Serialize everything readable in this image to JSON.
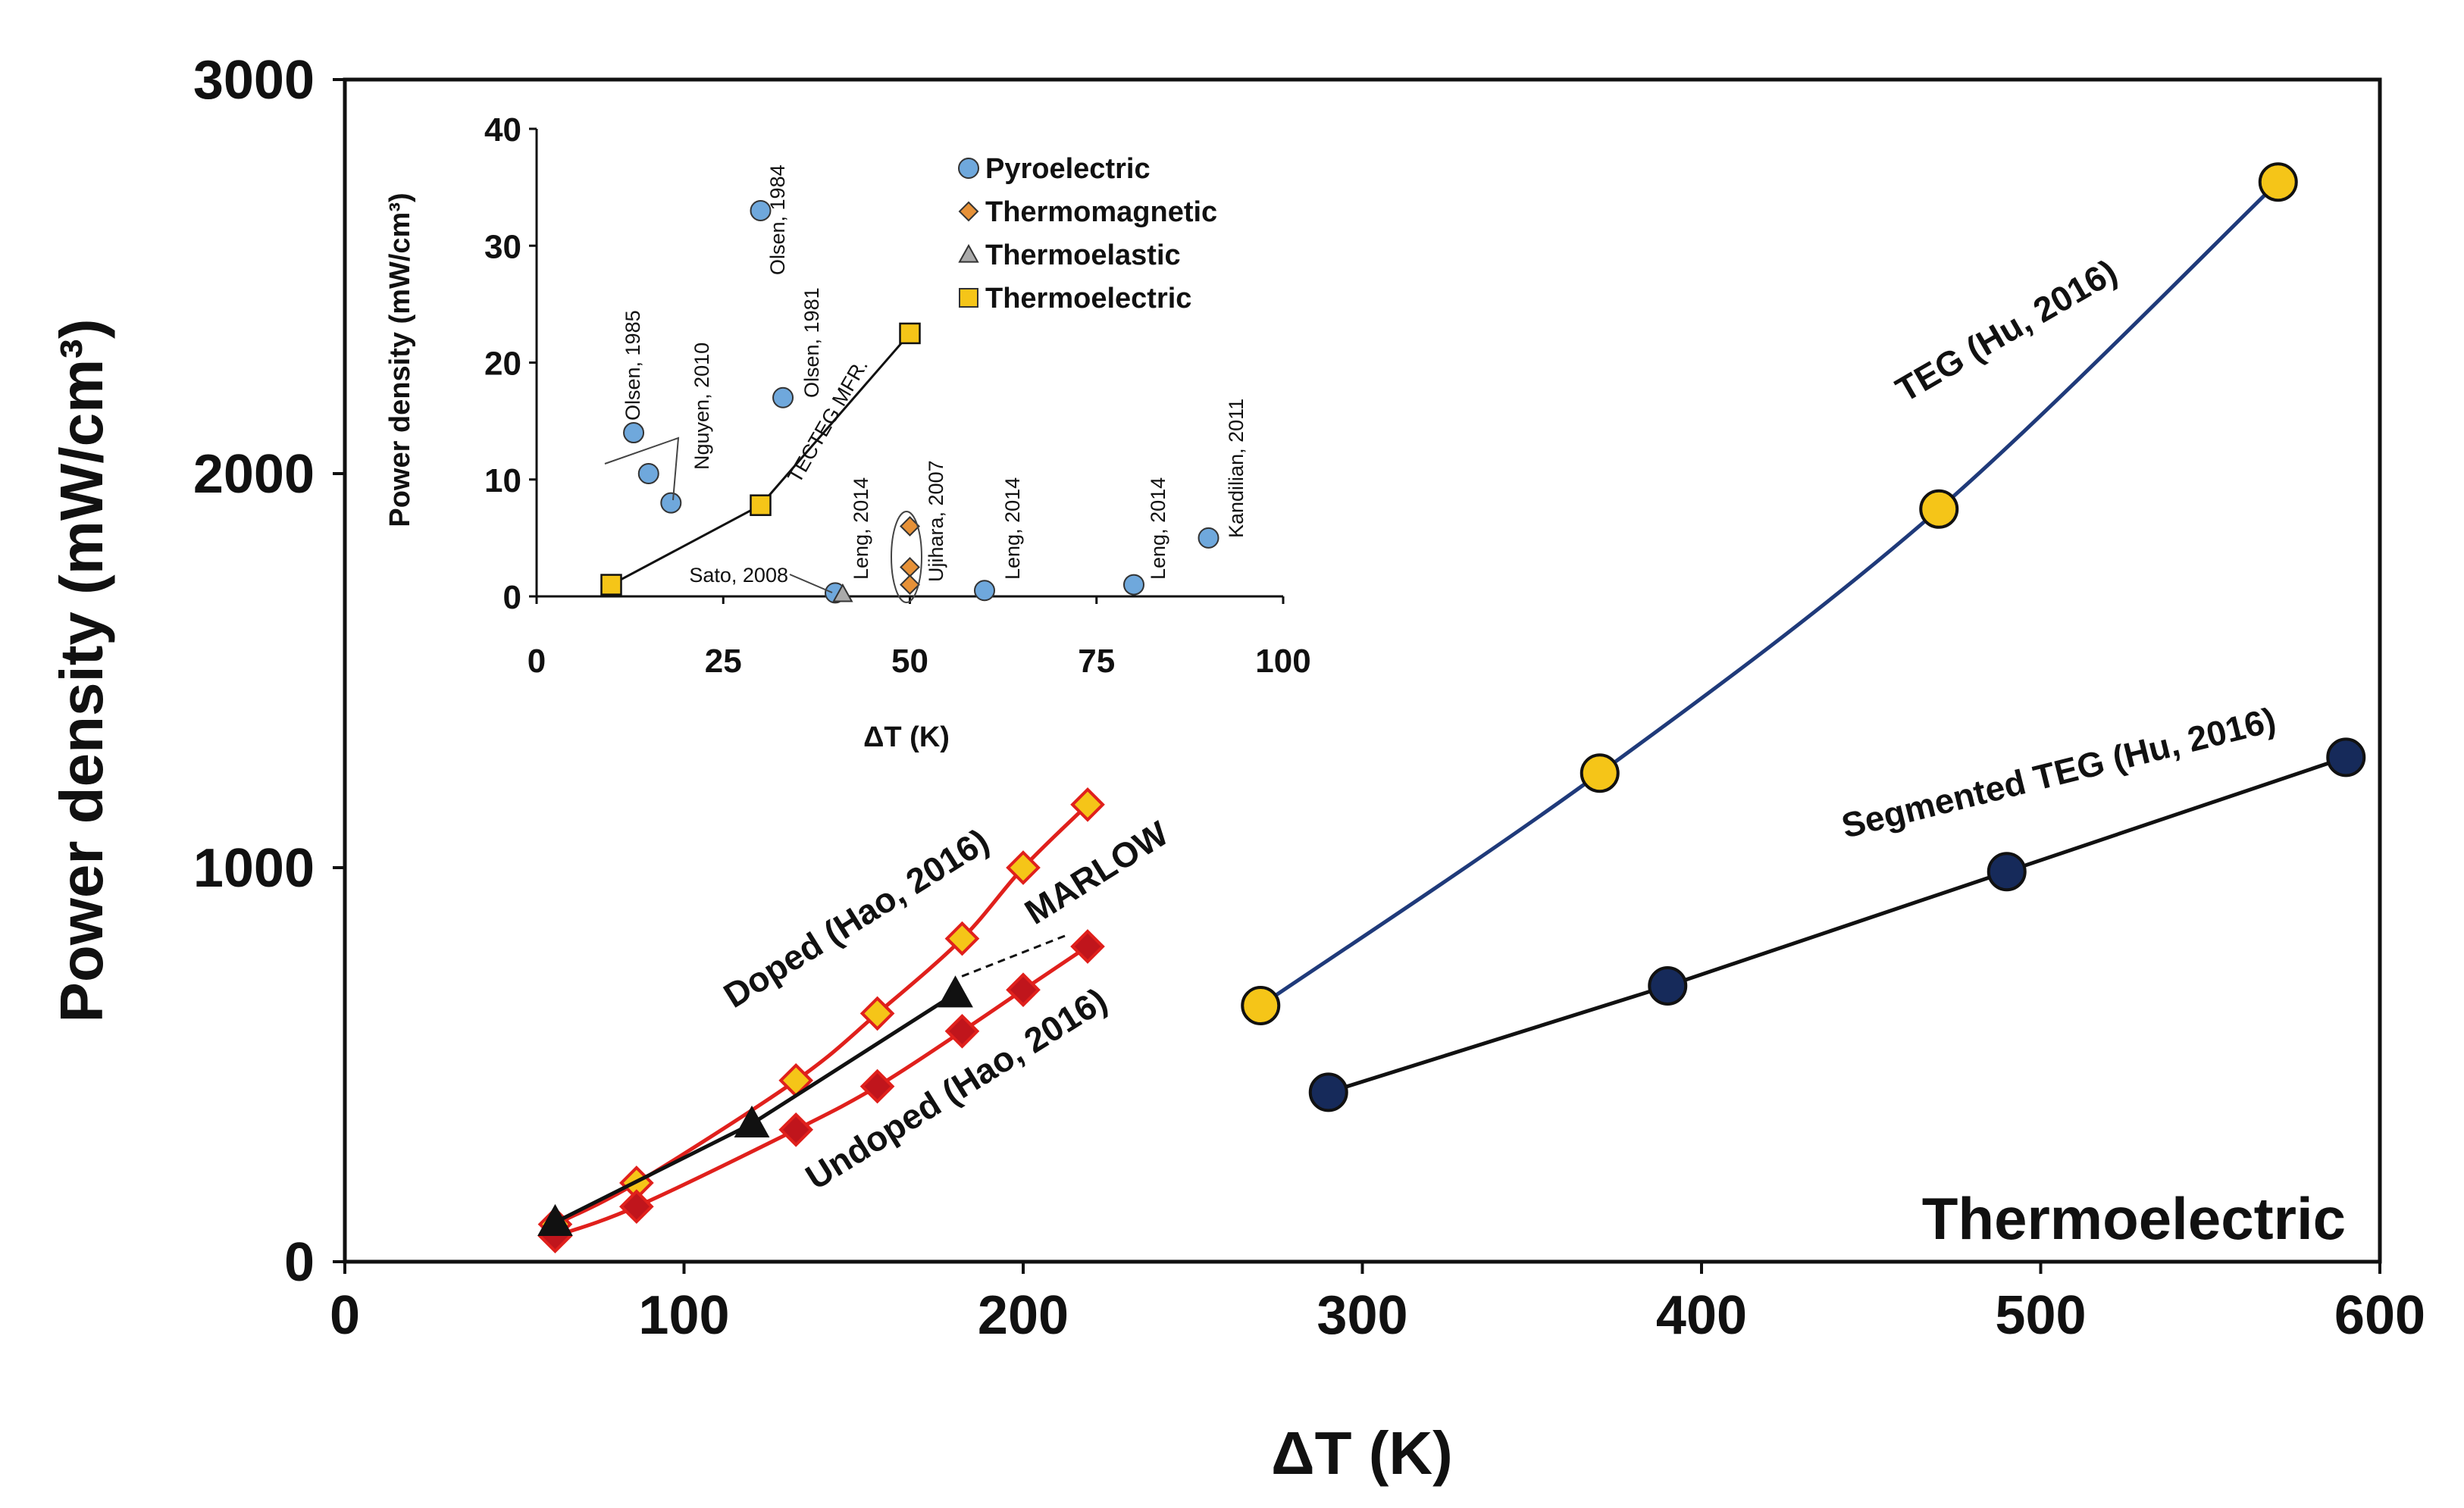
{
  "chart_data": [
    {
      "id": "main",
      "type": "line",
      "title": "",
      "xlabel": "ΔT (K)",
      "ylabel": "Power density (mW/cm³)",
      "xlim": [
        0,
        600
      ],
      "ylim": [
        0,
        3000
      ],
      "xticks": [
        "0",
        "100",
        "200",
        "300",
        "400",
        "500",
        "600"
      ],
      "yticks": [
        "0",
        "1000",
        "2000",
        "3000"
      ],
      "grid": false,
      "corner_label": "Thermoelectric",
      "series": [
        {
          "name": "TEG (Hu, 2016)",
          "label": "TEG (Hu, 2016)",
          "color": "#1f3a7a",
          "marker": "circle",
          "marker_fill": "#f5c518",
          "x": [
            270,
            370,
            470,
            570
          ],
          "y": [
            650,
            1240,
            1910,
            2740
          ]
        },
        {
          "name": "Segmented TEG (Hu, 2016)",
          "label": "Segmented TEG (Hu, 2016)",
          "color": "#111111",
          "marker": "circle",
          "marker_fill": "#162a5a",
          "x": [
            290,
            390,
            490,
            590
          ],
          "y": [
            430,
            700,
            990,
            1280
          ]
        },
        {
          "name": "Doped (Hao, 2016)",
          "label": "Doped (Hao, 2016)",
          "color": "#e0201c",
          "marker": "diamond",
          "marker_fill": "#f5c518",
          "x": [
            62,
            86,
            133,
            157,
            182,
            200,
            219
          ],
          "y": [
            95,
            200,
            460,
            630,
            820,
            1000,
            1160
          ]
        },
        {
          "name": "Undoped (Hao, 2016)",
          "label": "Undoped (Hao, 2016)",
          "color": "#e0201c",
          "marker": "diamond",
          "marker_fill": "#c0151c",
          "x": [
            62,
            86,
            133,
            157,
            182,
            200,
            219
          ],
          "y": [
            65,
            140,
            335,
            445,
            585,
            690,
            800
          ]
        },
        {
          "name": "MARLOW",
          "label": "MARLOW",
          "color": "#111111",
          "marker": "triangle",
          "marker_fill": "#111111",
          "x": [
            62,
            120,
            180
          ],
          "y": [
            100,
            350,
            680
          ]
        }
      ]
    },
    {
      "id": "inset",
      "type": "scatter",
      "xlabel": "ΔT (K)",
      "ylabel": "Power density (mW/cm³)",
      "xlim": [
        0,
        100
      ],
      "ylim": [
        0,
        40
      ],
      "xticks": [
        "0",
        "25",
        "50",
        "75",
        "100"
      ],
      "yticks": [
        "0",
        "10",
        "20",
        "30",
        "40"
      ],
      "legend_position": "top-right",
      "legend": [
        {
          "label": "Pyroelectric",
          "marker": "circle",
          "color": "#6fa8dc"
        },
        {
          "label": "Thermomagnetic",
          "marker": "diamond",
          "color": "#e69138"
        },
        {
          "label": "Thermoelastic",
          "marker": "triangle",
          "color": "#aaaaaa"
        },
        {
          "label": "Thermoelectric",
          "marker": "square",
          "color": "#f5c518"
        }
      ],
      "points": [
        {
          "category": "Pyroelectric",
          "x": 13,
          "y": 14.0,
          "label": "Olsen, 1985"
        },
        {
          "category": "Pyroelectric",
          "x": 15,
          "y": 10.5,
          "label": "Nguyen, 2010"
        },
        {
          "category": "Pyroelectric",
          "x": 18,
          "y": 8.0,
          "label": ""
        },
        {
          "category": "Pyroelectric",
          "x": 30,
          "y": 33.0,
          "label": "Olsen, 1984"
        },
        {
          "category": "Pyroelectric",
          "x": 33,
          "y": 17.0,
          "label": "Olsen, 1981"
        },
        {
          "category": "Pyroelectric",
          "x": 40,
          "y": 0.3,
          "label": "Leng, 2014"
        },
        {
          "category": "Pyroelectric",
          "x": 60,
          "y": 0.5,
          "label": "Leng, 2014"
        },
        {
          "category": "Pyroelectric",
          "x": 80,
          "y": 1.0,
          "label": "Leng, 2014"
        },
        {
          "category": "Pyroelectric",
          "x": 90,
          "y": 5.0,
          "label": "Kandilian, 2011"
        },
        {
          "category": "Thermomagnetic",
          "x": 50,
          "y": 6.0,
          "label": "Ujihara, 2007"
        },
        {
          "category": "Thermomagnetic",
          "x": 50,
          "y": 2.5,
          "label": ""
        },
        {
          "category": "Thermomagnetic",
          "x": 50,
          "y": 1.0,
          "label": ""
        },
        {
          "category": "Thermoelastic",
          "x": 41,
          "y": 0.2,
          "label": "Sato, 2008"
        }
      ],
      "thermoelectric_line": {
        "label": "TECTEG MFR.",
        "x": [
          10,
          30,
          50
        ],
        "y": [
          1.0,
          7.8,
          22.5
        ]
      }
    }
  ]
}
